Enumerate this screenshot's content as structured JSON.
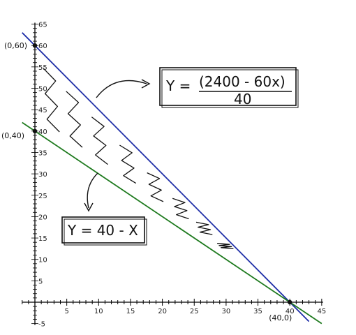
{
  "chart_data": {
    "type": "line",
    "title": "",
    "xlabel": "",
    "ylabel": "",
    "xlim": [
      -2,
      45
    ],
    "ylim": [
      -5,
      65
    ],
    "x_ticks": [
      5,
      10,
      15,
      20,
      25,
      30,
      35,
      40,
      45
    ],
    "y_ticks": [
      -5,
      5,
      10,
      15,
      20,
      25,
      30,
      35,
      40,
      45,
      50,
      55,
      60,
      65
    ],
    "series": [
      {
        "label": "Y = (2400 - 60x) / 40",
        "color": "#1f2fa8",
        "x": [
          -2,
          43
        ],
        "y": [
          63,
          -4.5
        ]
      },
      {
        "label": "Y = 40 - X",
        "color": "#1e7a1e",
        "x": [
          -2,
          45
        ],
        "y": [
          42,
          -5
        ]
      }
    ],
    "points": [
      {
        "label": "(0,60)",
        "x": 0,
        "y": 60
      },
      {
        "label": "(0,40)",
        "x": 0,
        "y": 40
      },
      {
        "label": "(40,0)",
        "x": 40,
        "y": 0
      }
    ],
    "annotations": {
      "eq_blue_lhs": "Y =",
      "eq_blue_num": "(2400 - 60x)",
      "eq_blue_den": "40",
      "eq_green": "Y = 40 - X"
    },
    "colors": {
      "axis": "#000000",
      "blue": "#1f2fa8",
      "green": "#1e7a1e",
      "ink": "#111111"
    }
  }
}
